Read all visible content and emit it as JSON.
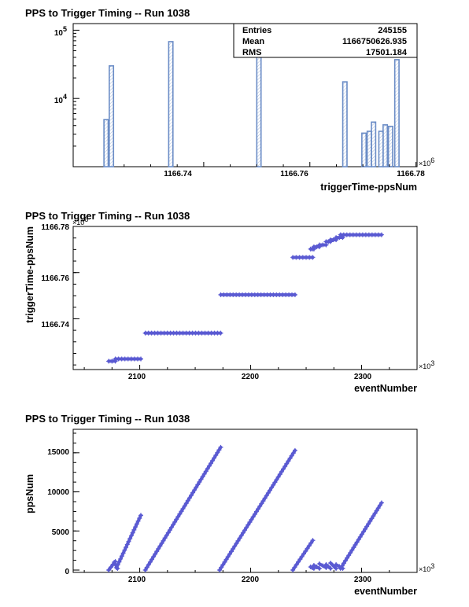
{
  "chart_data": [
    {
      "type": "bar",
      "title": "PPS to Trigger Timing -- Run 1038",
      "xlabel": "triggerTime-ppsNum",
      "ylabel": "",
      "x_multiplier": "×10",
      "x_multiplier_exp": "6",
      "xlim": [
        1166.7154,
        1166.7802
      ],
      "ylog": true,
      "ylim": [
        1000,
        125000
      ],
      "xticks": [
        "1166.74",
        "1166.76",
        "1166.78"
      ],
      "xtick_values": [
        1166.74,
        1166.76,
        1166.78
      ],
      "yticks": [
        {
          "base": "10",
          "exp": "4",
          "value": 10000
        },
        {
          "base": "10",
          "exp": "5",
          "value": 100000
        }
      ],
      "bin_width": 0.0008,
      "bins": [
        {
          "x": 1166.7216,
          "value": 4900
        },
        {
          "x": 1166.7226,
          "value": 30000
        },
        {
          "x": 1166.7338,
          "value": 68000
        },
        {
          "x": 1166.7504,
          "value": 68000
        },
        {
          "x": 1166.7666,
          "value": 17500
        },
        {
          "x": 1166.7702,
          "value": 3100
        },
        {
          "x": 1166.7712,
          "value": 3300
        },
        {
          "x": 1166.772,
          "value": 4500
        },
        {
          "x": 1166.7734,
          "value": 3300
        },
        {
          "x": 1166.7742,
          "value": 4100
        },
        {
          "x": 1166.7752,
          "value": 3900
        },
        {
          "x": 1166.7764,
          "value": 37000
        }
      ],
      "stats": {
        "entries_label": "Entries",
        "entries_value": "245155",
        "mean_label": "Mean",
        "mean_value": "1166750626.935",
        "rms_label": "RMS",
        "rms_value": "17501.184"
      },
      "colors": {
        "line": "#6a8cc6",
        "fill": "#a9bbdc"
      }
    },
    {
      "type": "scatter",
      "title": "PPS to Trigger Timing -- Run 1038",
      "xlabel": "eventNumber",
      "ylabel": "triggerTime-ppsNum",
      "x_multiplier": "×10",
      "x_multiplier_exp": "3",
      "y_multiplier": "×10",
      "y_multiplier_exp": "6",
      "xlim": [
        2040,
        2350
      ],
      "ylim": [
        1166.718,
        1166.78
      ],
      "xticks": [
        "2100",
        "2200",
        "2300"
      ],
      "xtick_values": [
        2100,
        2200,
        2300
      ],
      "yticks": [
        "1166.74",
        "1166.76",
        "1166.78"
      ],
      "ytick_values": [
        1166.74,
        1166.76,
        1166.78
      ],
      "segments": [
        {
          "x": [
            2072,
            2078
          ],
          "y": [
            1166.7216,
            1166.7216
          ]
        },
        {
          "x": [
            2078,
            2101
          ],
          "y": [
            1166.7226,
            1166.7226
          ]
        },
        {
          "x": [
            2105,
            2173
          ],
          "y": [
            1166.7338,
            1166.7338
          ]
        },
        {
          "x": [
            2173,
            2240
          ],
          "y": [
            1166.7504,
            1166.7504
          ]
        },
        {
          "x": [
            2238,
            2256
          ],
          "y": [
            1166.7666,
            1166.7666
          ]
        },
        {
          "x": [
            2254,
            2257
          ],
          "y": [
            1166.7702,
            1166.7702
          ]
        },
        {
          "x": [
            2257,
            2262
          ],
          "y": [
            1166.7712,
            1166.7712
          ]
        },
        {
          "x": [
            2262,
            2268
          ],
          "y": [
            1166.772,
            1166.772
          ]
        },
        {
          "x": [
            2268,
            2272
          ],
          "y": [
            1166.7734,
            1166.7734
          ]
        },
        {
          "x": [
            2272,
            2277
          ],
          "y": [
            1166.7742,
            1166.7742
          ]
        },
        {
          "x": [
            2277,
            2283
          ],
          "y": [
            1166.7752,
            1166.7752
          ]
        },
        {
          "x": [
            2281,
            2318
          ],
          "y": [
            1166.7764,
            1166.7764
          ]
        }
      ],
      "colors": {
        "marker": "#5a5ad2"
      }
    },
    {
      "type": "scatter",
      "title": "PPS to Trigger Timing -- Run 1038",
      "xlabel": "eventNumber",
      "ylabel": "ppsNum",
      "x_multiplier": "×10",
      "x_multiplier_exp": "3",
      "xlim": [
        2040,
        2350
      ],
      "ylim": [
        -300,
        18000
      ],
      "xticks": [
        "2100",
        "2200",
        "2300"
      ],
      "xtick_values": [
        2100,
        2200,
        2300
      ],
      "yticks": [
        "0",
        "5000",
        "10000",
        "15000"
      ],
      "ytick_values": [
        0,
        5000,
        10000,
        15000
      ],
      "segments": [
        {
          "x": [
            2072,
            2078
          ],
          "y": [
            0,
            1100
          ]
        },
        {
          "x": [
            2077,
            2080
          ],
          "y": [
            1000,
            200
          ]
        },
        {
          "x": [
            2079,
            2101
          ],
          "y": [
            300,
            7000
          ]
        },
        {
          "x": [
            2105,
            2173
          ],
          "y": [
            0,
            15700
          ]
        },
        {
          "x": [
            2172,
            2240
          ],
          "y": [
            0,
            15300
          ]
        },
        {
          "x": [
            2238,
            2256
          ],
          "y": [
            0,
            3800
          ]
        },
        {
          "x": [
            2254,
            2257
          ],
          "y": [
            400,
            200
          ]
        },
        {
          "x": [
            2257,
            2262
          ],
          "y": [
            600,
            200
          ]
        },
        {
          "x": [
            2262,
            2268
          ],
          "y": [
            800,
            300
          ]
        },
        {
          "x": [
            2268,
            2272
          ],
          "y": [
            700,
            200
          ]
        },
        {
          "x": [
            2272,
            2277
          ],
          "y": [
            900,
            200
          ]
        },
        {
          "x": [
            2277,
            2283
          ],
          "y": [
            700,
            200
          ]
        },
        {
          "x": [
            2281,
            2318
          ],
          "y": [
            200,
            8600
          ]
        }
      ],
      "colors": {
        "marker": "#5a5ad2"
      }
    }
  ]
}
